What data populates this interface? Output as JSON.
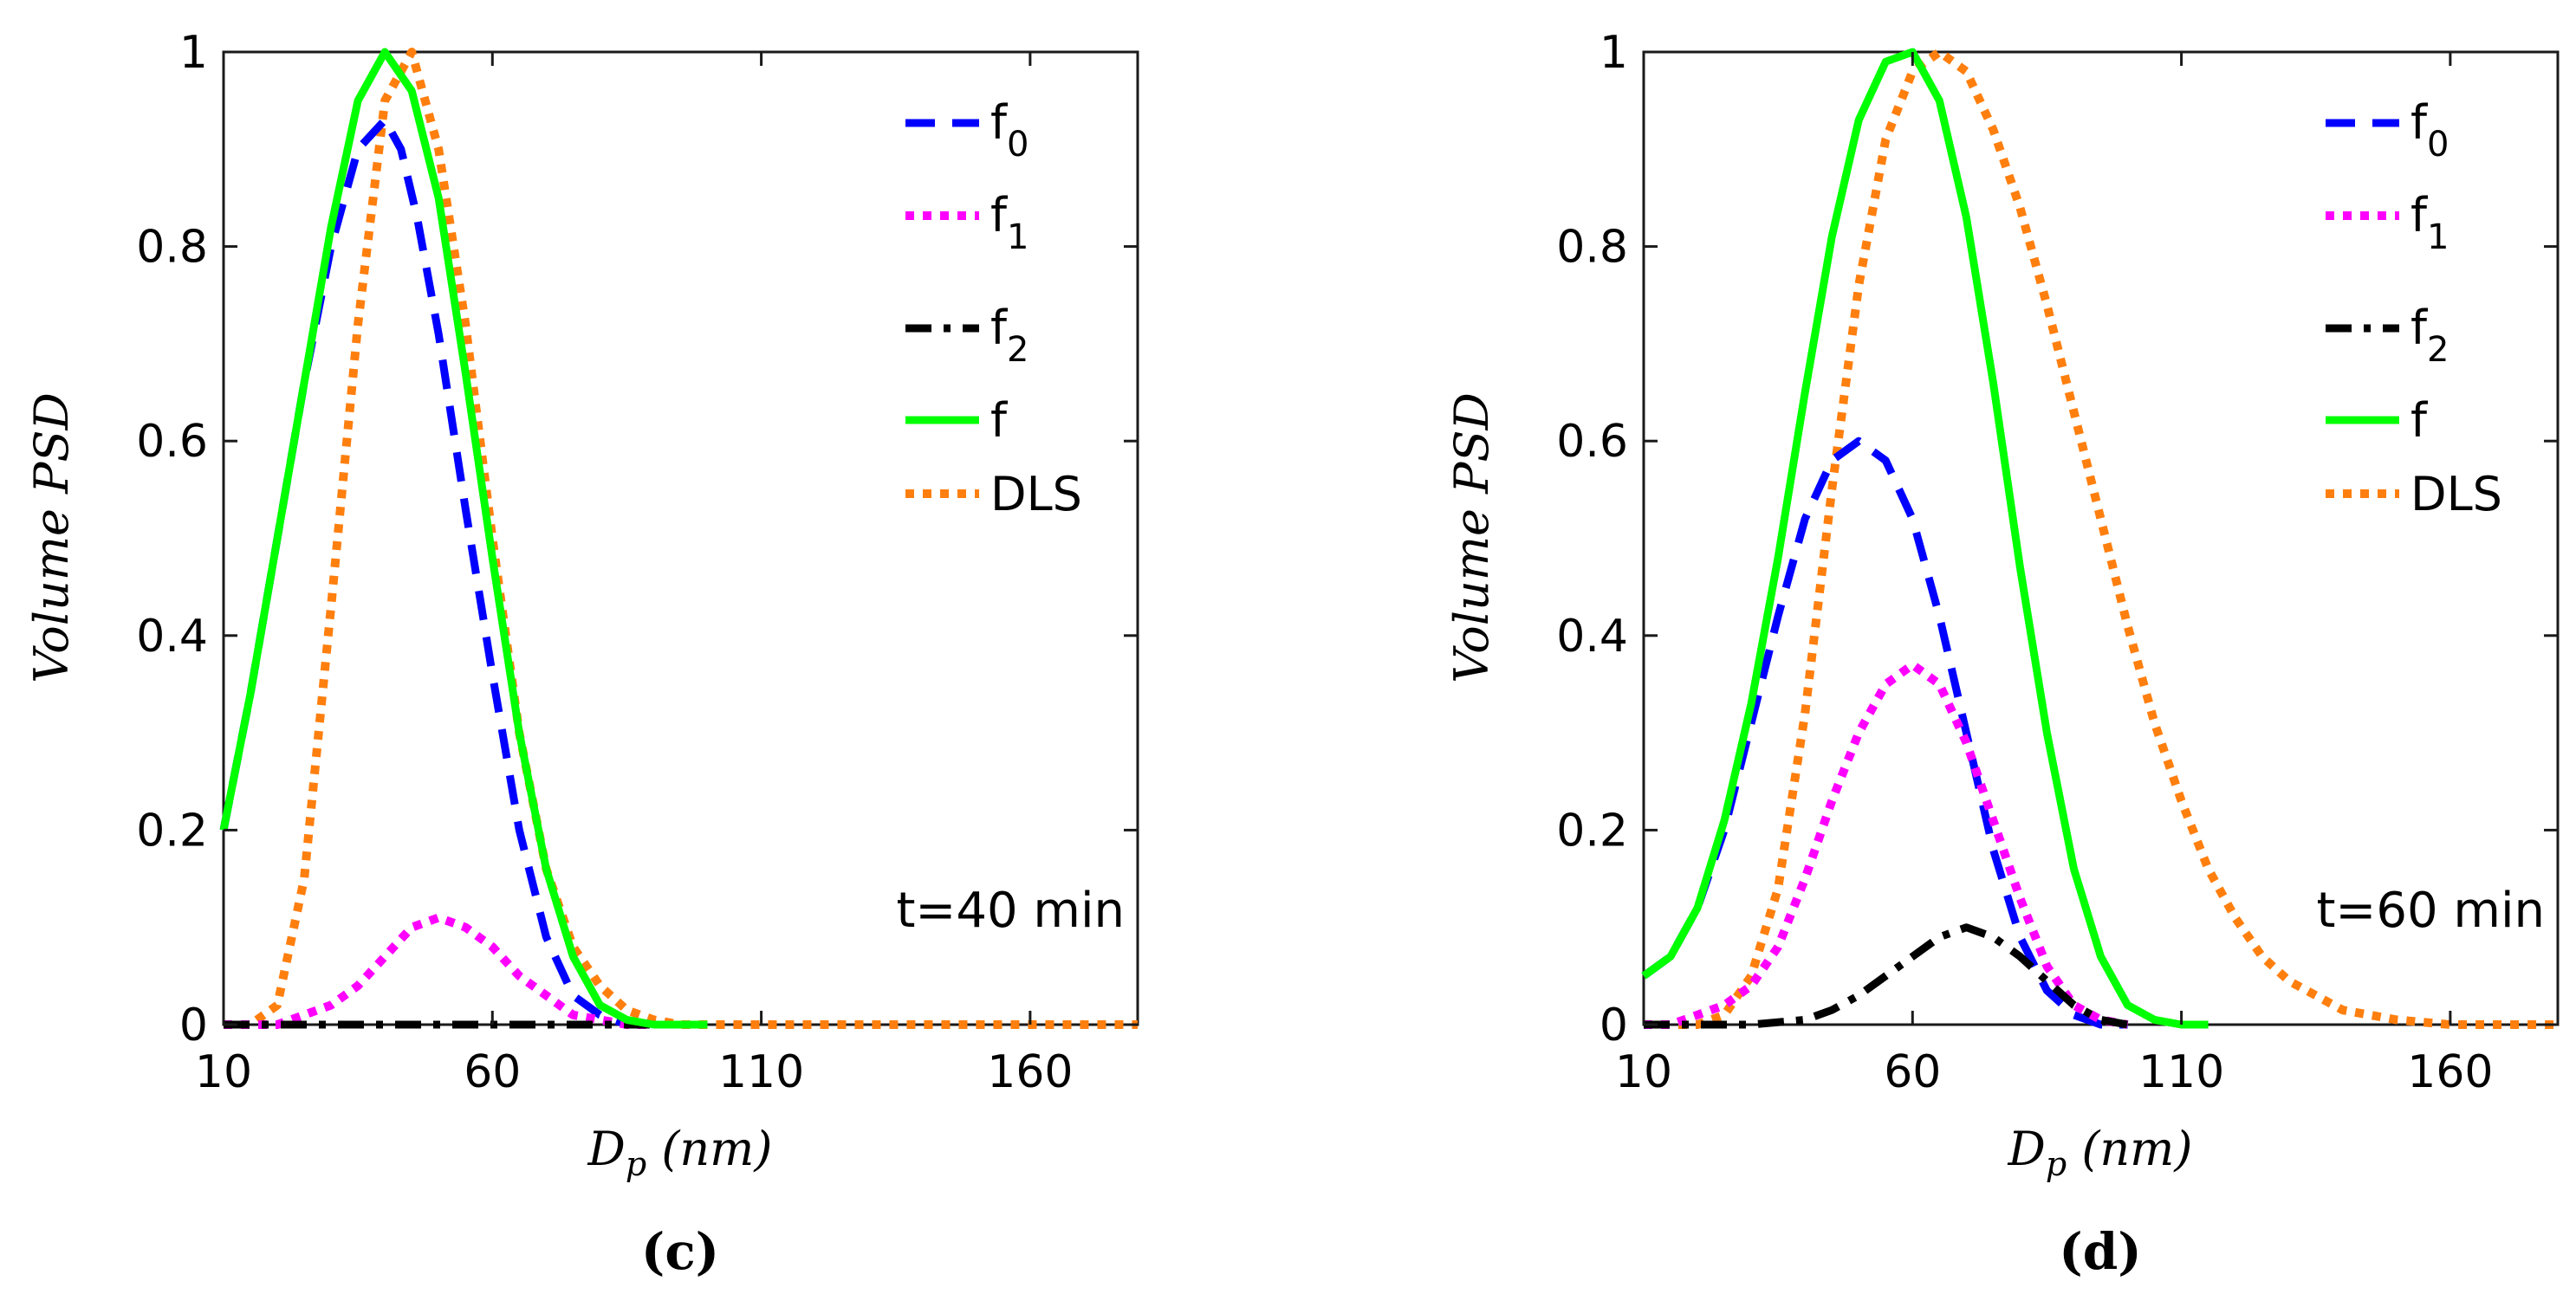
{
  "colors": {
    "f0": "#0000ff",
    "f1": "#ff00ff",
    "f2": "#000000",
    "f": "#00ff00",
    "DLS": "#ff7f0e"
  },
  "chart_data": [
    {
      "type": "line",
      "caption": "(c)",
      "annotation": "t=40 min",
      "xlabel": "D_p (nm)",
      "ylabel": "Volume PSD",
      "xlim": [
        10,
        180
      ],
      "ylim": [
        0,
        1
      ],
      "xticks": [
        "10",
        "60",
        "110",
        "160"
      ],
      "yticks": [
        "0",
        "0.2",
        "0.4",
        "0.6",
        "0.8",
        "1"
      ],
      "legend": [
        "f0",
        "f1",
        "f2",
        "f",
        "DLS"
      ],
      "legend_position": "top-right",
      "series": [
        {
          "name": "f0",
          "style": "dashed",
          "x": [
            10,
            15,
            20,
            25,
            30,
            35,
            40,
            43,
            46,
            50,
            55,
            60,
            65,
            70,
            75,
            80,
            85,
            90
          ],
          "y": [
            0.2,
            0.34,
            0.5,
            0.66,
            0.8,
            0.9,
            0.93,
            0.9,
            0.83,
            0.71,
            0.53,
            0.36,
            0.2,
            0.09,
            0.03,
            0.01,
            0.0,
            0.0
          ]
        },
        {
          "name": "f1",
          "style": "dotted",
          "x": [
            10,
            15,
            20,
            25,
            30,
            35,
            40,
            45,
            50,
            55,
            60,
            65,
            70,
            75,
            80,
            85,
            90
          ],
          "y": [
            0.0,
            0.0,
            0.0,
            0.01,
            0.02,
            0.04,
            0.07,
            0.1,
            0.11,
            0.1,
            0.08,
            0.05,
            0.03,
            0.01,
            0.005,
            0.0,
            0.0
          ]
        },
        {
          "name": "f2",
          "style": "dashdot",
          "x": [
            10,
            90
          ],
          "y": [
            0.0,
            0.0
          ]
        },
        {
          "name": "f",
          "style": "solid",
          "x": [
            10,
            15,
            20,
            25,
            30,
            35,
            40,
            45,
            50,
            55,
            60,
            65,
            70,
            75,
            80,
            85,
            90,
            95,
            100
          ],
          "y": [
            0.2,
            0.34,
            0.5,
            0.66,
            0.82,
            0.95,
            1.0,
            0.96,
            0.85,
            0.67,
            0.48,
            0.3,
            0.16,
            0.07,
            0.02,
            0.005,
            0.0,
            0.0,
            0.0
          ]
        },
        {
          "name": "DLS",
          "style": "dotted",
          "x": [
            10,
            15,
            20,
            25,
            30,
            35,
            40,
            45,
            50,
            55,
            60,
            65,
            70,
            75,
            80,
            85,
            90,
            95,
            100,
            110,
            130,
            160,
            180
          ],
          "y": [
            0.0,
            0.0,
            0.02,
            0.15,
            0.43,
            0.72,
            0.95,
            1.0,
            0.9,
            0.72,
            0.5,
            0.3,
            0.16,
            0.08,
            0.04,
            0.015,
            0.005,
            0.0,
            0.0,
            0.0,
            0.0,
            0.0,
            0.0
          ]
        }
      ]
    },
    {
      "type": "line",
      "caption": "(d)",
      "annotation": "t=60 min",
      "xlabel": "D_p (nm)",
      "ylabel": "Volume PSD",
      "xlim": [
        10,
        180
      ],
      "ylim": [
        0,
        1
      ],
      "xticks": [
        "10",
        "60",
        "110",
        "160"
      ],
      "yticks": [
        "0",
        "0.2",
        "0.4",
        "0.6",
        "0.8",
        "1"
      ],
      "legend": [
        "f0",
        "f1",
        "f2",
        "f",
        "DLS"
      ],
      "legend_position": "top-right",
      "series": [
        {
          "name": "f0",
          "style": "dashed",
          "x": [
            10,
            15,
            20,
            25,
            30,
            35,
            40,
            45,
            50,
            55,
            60,
            65,
            70,
            75,
            80,
            85,
            90,
            95,
            100
          ],
          "y": [
            0.05,
            0.07,
            0.12,
            0.2,
            0.31,
            0.42,
            0.52,
            0.58,
            0.6,
            0.58,
            0.52,
            0.42,
            0.3,
            0.18,
            0.09,
            0.035,
            0.01,
            0.0,
            0.0
          ]
        },
        {
          "name": "f1",
          "style": "dotted",
          "x": [
            10,
            15,
            20,
            25,
            30,
            35,
            40,
            45,
            50,
            55,
            60,
            65,
            70,
            75,
            80,
            85,
            90,
            95,
            100
          ],
          "y": [
            0.0,
            0.0,
            0.01,
            0.02,
            0.04,
            0.08,
            0.15,
            0.23,
            0.3,
            0.35,
            0.37,
            0.35,
            0.29,
            0.21,
            0.13,
            0.06,
            0.02,
            0.005,
            0.0
          ]
        },
        {
          "name": "f2",
          "style": "dashdot",
          "x": [
            10,
            20,
            30,
            40,
            45,
            50,
            55,
            60,
            65,
            70,
            75,
            80,
            85,
            90,
            95,
            100
          ],
          "y": [
            0.0,
            0.0,
            0.0,
            0.005,
            0.015,
            0.03,
            0.05,
            0.07,
            0.09,
            0.1,
            0.09,
            0.07,
            0.045,
            0.02,
            0.005,
            0.0
          ]
        },
        {
          "name": "f",
          "style": "solid",
          "x": [
            10,
            15,
            20,
            25,
            30,
            35,
            40,
            45,
            50,
            55,
            60,
            65,
            70,
            75,
            80,
            85,
            90,
            95,
            100,
            105,
            110,
            115
          ],
          "y": [
            0.05,
            0.07,
            0.12,
            0.21,
            0.33,
            0.48,
            0.65,
            0.81,
            0.93,
            0.99,
            1.0,
            0.95,
            0.83,
            0.66,
            0.47,
            0.3,
            0.16,
            0.07,
            0.02,
            0.005,
            0.0,
            0.0
          ]
        },
        {
          "name": "DLS",
          "style": "dotted",
          "x": [
            10,
            15,
            20,
            25,
            30,
            35,
            40,
            45,
            50,
            55,
            60,
            65,
            70,
            75,
            80,
            85,
            90,
            95,
            100,
            105,
            110,
            115,
            120,
            125,
            130,
            140,
            150,
            160,
            170,
            180
          ],
          "y": [
            0.0,
            0.0,
            0.0,
            0.01,
            0.05,
            0.14,
            0.32,
            0.55,
            0.76,
            0.91,
            0.98,
            1.0,
            0.98,
            0.92,
            0.84,
            0.74,
            0.63,
            0.52,
            0.41,
            0.31,
            0.23,
            0.16,
            0.11,
            0.07,
            0.045,
            0.015,
            0.005,
            0.0,
            0.0,
            0.0
          ]
        }
      ]
    }
  ]
}
